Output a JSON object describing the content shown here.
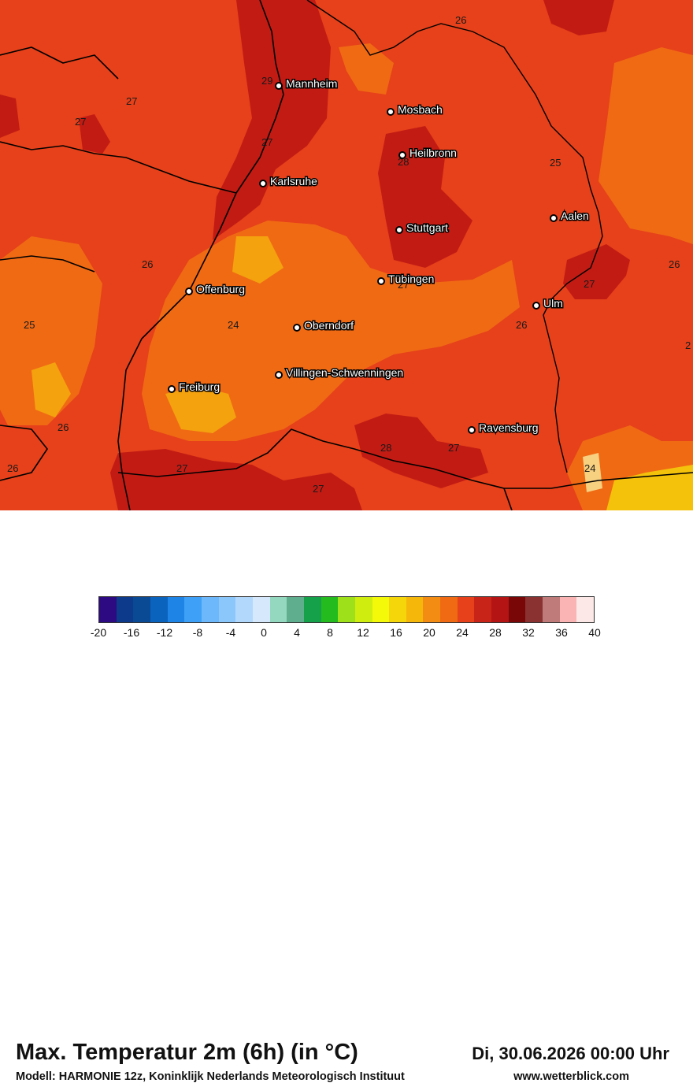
{
  "map": {
    "cities": [
      {
        "name": "Mannheim"
      },
      {
        "name": "Mosbach"
      },
      {
        "name": "Heilbronn"
      },
      {
        "name": "Karlsruhe"
      },
      {
        "name": "Aalen"
      },
      {
        "name": "Stuttgart"
      },
      {
        "name": "Offenburg"
      },
      {
        "name": "Tübingen"
      },
      {
        "name": "Ulm"
      },
      {
        "name": "Oberndorf"
      },
      {
        "name": "Villingen-Schwenningen"
      },
      {
        "name": "Freiburg"
      },
      {
        "name": "Ravensburg"
      }
    ],
    "isotherm_labels": [
      "26",
      "29",
      "27",
      "27",
      "27",
      "28",
      "25",
      "26",
      "26",
      "27",
      "27",
      "25",
      "24",
      "26",
      "2",
      "26",
      "28",
      "27",
      "26",
      "27",
      "27",
      "24"
    ]
  },
  "footer": {
    "title": "Max. Temperatur 2m (6h) (in °C)",
    "subtitle": "Modell: HARMONIE 12z, Koninklijk Nederlands Meteorologisch Instituut",
    "datetime": "Di, 30.06.2026 00:00 Uhr",
    "website": "www.wetterblick.com"
  },
  "legend": {
    "unit": "°C",
    "range": [
      -20,
      40
    ],
    "colors": [
      "#2e0a82",
      "#0d3a8a",
      "#0a4a94",
      "#0a63bc",
      "#1e84e6",
      "#3ea1f7",
      "#6cb8fb",
      "#8cc7fb",
      "#b2d9fc",
      "#d6e8fc",
      "#93d8bf",
      "#5fae8e",
      "#15a14a",
      "#23bb1e",
      "#9ee01a",
      "#d0ed10",
      "#f4f90a",
      "#f4d60a",
      "#f4b70a",
      "#f38c12",
      "#f06a14",
      "#e6411a",
      "#c92418",
      "#b41414",
      "#7a0707",
      "#8a3232",
      "#bf7a7a",
      "#fbb4b4",
      "#fde8e8"
    ],
    "ticks": [
      "-20",
      "-16",
      "-12",
      "-8",
      "-4",
      "0",
      "4",
      "8",
      "12",
      "16",
      "20",
      "24",
      "28",
      "32",
      "36",
      "40"
    ]
  }
}
